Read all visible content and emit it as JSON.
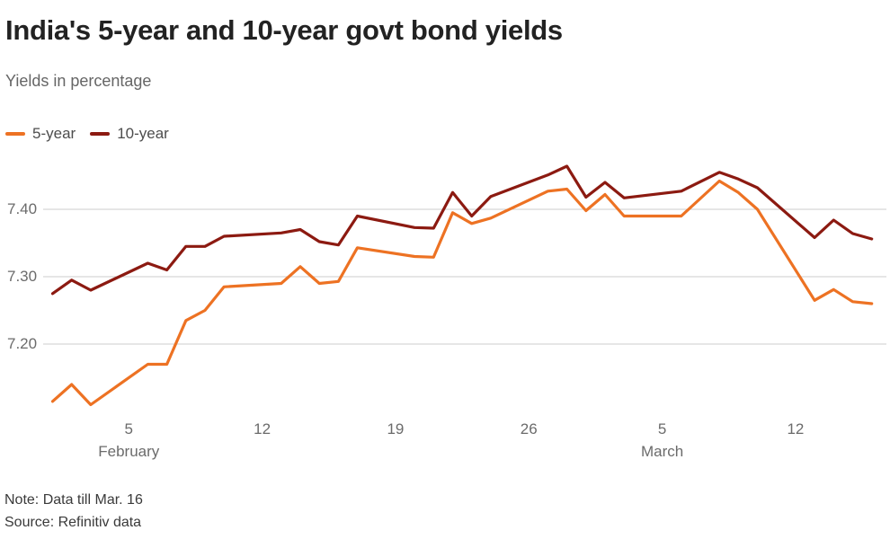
{
  "header": {
    "title": "India's 5-year and 10-year govt bond yields",
    "subtitle": "Yields in percentage"
  },
  "legend": [
    {
      "label": "5-year",
      "color": "#ED7223"
    },
    {
      "label": "10-year",
      "color": "#8C1A11"
    }
  ],
  "chart_data": {
    "type": "line",
    "title": "India's 5-year and 10-year govt bond yields",
    "ylabel": "Yields in percentage",
    "grid": "horizontal-only",
    "legend_position": "top-left",
    "ylim": [
      7.1,
      7.48
    ],
    "dates": [
      "Feb 1",
      "Feb 2",
      "Feb 3",
      "Feb 6",
      "Feb 7",
      "Feb 8",
      "Feb 9",
      "Feb 10",
      "Feb 13",
      "Feb 14",
      "Feb 15",
      "Feb 16",
      "Feb 17",
      "Feb 20",
      "Feb 21",
      "Feb 22",
      "Feb 23",
      "Feb 24",
      "Feb 27",
      "Feb 28",
      "Mar 1",
      "Mar 2",
      "Mar 3",
      "Mar 6",
      "Mar 8",
      "Mar 9",
      "Mar 10",
      "Mar 13",
      "Mar 14",
      "Mar 15",
      "Mar 16"
    ],
    "day_offsets": [
      0,
      1,
      2,
      5,
      6,
      7,
      8,
      9,
      12,
      13,
      14,
      15,
      16,
      19,
      20,
      21,
      22,
      23,
      26,
      27,
      28,
      29,
      30,
      33,
      35,
      36,
      37,
      40,
      41,
      42,
      43
    ],
    "series": [
      {
        "name": "5-year",
        "color": "#ED7223",
        "values": [
          7.115,
          7.14,
          7.11,
          7.17,
          7.17,
          7.235,
          7.25,
          7.285,
          7.29,
          7.315,
          7.29,
          7.293,
          7.343,
          7.33,
          7.329,
          7.395,
          7.379,
          7.387,
          7.427,
          7.43,
          7.398,
          7.422,
          7.39,
          7.39,
          7.442,
          7.425,
          7.4,
          7.265,
          7.281,
          7.263,
          7.26
        ]
      },
      {
        "name": "10-year",
        "color": "#8C1A11",
        "values": [
          7.275,
          7.295,
          7.28,
          7.32,
          7.31,
          7.345,
          7.345,
          7.36,
          7.365,
          7.37,
          7.352,
          7.347,
          7.39,
          7.373,
          7.372,
          7.425,
          7.39,
          7.419,
          7.451,
          7.464,
          7.418,
          7.44,
          7.417,
          7.427,
          7.455,
          7.445,
          7.432,
          7.358,
          7.384,
          7.364,
          7.356
        ]
      }
    ],
    "y_ticks": [
      {
        "label": "7.40",
        "value": 7.4
      },
      {
        "label": "7.30",
        "value": 7.3
      },
      {
        "label": "7.20",
        "value": 7.2
      }
    ],
    "x_ticks": [
      {
        "label": "5",
        "day": 4
      },
      {
        "label": "12",
        "day": 11
      },
      {
        "label": "19",
        "day": 18
      },
      {
        "label": "26",
        "day": 25
      },
      {
        "label": "5",
        "day": 32
      },
      {
        "label": "12",
        "day": 39
      }
    ],
    "month_labels": [
      {
        "label": "February",
        "day": 4
      },
      {
        "label": "March",
        "day": 32
      }
    ],
    "gridline_color": "#cccccc"
  },
  "footer": {
    "note": "Note: Data till Mar. 16",
    "source": "Source: Refinitiv data"
  }
}
